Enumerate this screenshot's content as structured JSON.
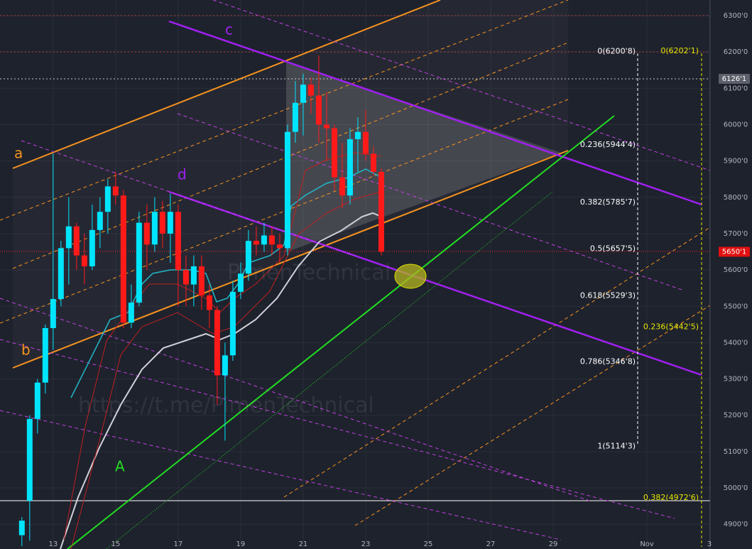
{
  "chart_data": {
    "type": "candlestick",
    "xlim": [
      11.3,
      34.02
    ],
    "ylim": [
      4832,
      6343
    ],
    "xticks": [
      13,
      15,
      17,
      19,
      21,
      23,
      25,
      27,
      29,
      {
        "value": 32,
        "label": "Nov"
      },
      {
        "value": 34,
        "label": "3"
      }
    ],
    "yticks": [
      {
        "value": 4900,
        "label": "4900'0"
      },
      {
        "value": 5000,
        "label": "5000'0"
      },
      {
        "value": 5100,
        "label": "5100'0"
      },
      {
        "value": 5200,
        "label": "5200'0"
      },
      {
        "value": 5300,
        "label": "5300'0"
      },
      {
        "value": 5400,
        "label": "5400'0"
      },
      {
        "value": 5500,
        "label": "5500'0"
      },
      {
        "value": 5600,
        "label": "5600'0"
      },
      {
        "value": 5700,
        "label": "5700'0"
      },
      {
        "value": 5800,
        "label": "5800'0"
      },
      {
        "value": 5900,
        "label": "5900'0"
      },
      {
        "value": 6000,
        "label": "6000'0"
      },
      {
        "value": 6100,
        "label": "6100'0"
      },
      {
        "value": 6200,
        "label": "6200'0"
      },
      {
        "value": 6300,
        "label": "6300'0"
      }
    ],
    "grid": true,
    "up_color": "#00e5ff",
    "down_color": "#ff1a1a",
    "x": [
      12,
      12.25,
      12.5,
      12.75,
      13,
      13.25,
      13.5,
      13.75,
      14,
      14.25,
      14.5,
      14.75,
      15,
      15.25,
      15.5,
      15.75,
      16,
      16.25,
      16.5,
      16.75,
      17,
      17.25,
      17.5,
      17.75,
      18,
      18.25,
      18.5,
      18.75,
      19,
      19.25,
      19.5,
      19.75,
      20,
      20.25,
      20.5,
      20.75,
      21,
      21.25,
      21.5,
      21.75,
      22,
      22.25,
      22.5,
      22.75,
      23,
      23.25,
      23.5
    ],
    "open": [
      4870,
      4965,
      5190,
      5290,
      5440,
      5520,
      5660,
      5720,
      5640,
      5610,
      5710,
      5760,
      5830,
      5805,
      5455,
      5510,
      5730,
      5670,
      5760,
      5700,
      5760,
      5600,
      5560,
      5610,
      5530,
      5490,
      5310,
      5365,
      5540,
      5590,
      5680,
      5670,
      5695,
      5670,
      5660,
      5980,
      6060,
      6110,
      6080,
      6000,
      5990,
      5855,
      5805,
      5960,
      5980,
      5920,
      5870
    ],
    "high": [
      4920,
      5200,
      5300,
      5450,
      5920,
      5680,
      5800,
      5730,
      5700,
      5780,
      5800,
      5850,
      5870,
      5820,
      5560,
      5760,
      5780,
      5800,
      5790,
      5810,
      5780,
      5640,
      5640,
      5640,
      5560,
      5500,
      5400,
      5570,
      5620,
      5710,
      5720,
      5730,
      5720,
      5700,
      6000,
      6120,
      6140,
      6130,
      6190,
      6090,
      6000,
      5950,
      5990,
      6020,
      6040,
      5940,
      5880
    ],
    "low": [
      4840,
      4855,
      5150,
      5260,
      5380,
      5500,
      5560,
      5600,
      5560,
      5600,
      5660,
      5700,
      5780,
      5440,
      5440,
      5500,
      5600,
      5650,
      5660,
      5620,
      5500,
      5500,
      5500,
      5490,
      5440,
      5230,
      5130,
      5350,
      5520,
      5570,
      5640,
      5650,
      5640,
      5620,
      5640,
      5950,
      5970,
      6030,
      5950,
      5900,
      5820,
      5770,
      5780,
      5870,
      5900,
      5860,
      5640
    ],
    "close": [
      4910,
      5190,
      5290,
      5440,
      5520,
      5660,
      5720,
      5640,
      5610,
      5710,
      5760,
      5830,
      5805,
      5455,
      5510,
      5730,
      5670,
      5760,
      5700,
      5760,
      5600,
      5560,
      5610,
      5530,
      5490,
      5310,
      5365,
      5540,
      5590,
      5680,
      5670,
      5695,
      5670,
      5660,
      5980,
      6060,
      6110,
      6080,
      6000,
      5990,
      5855,
      5805,
      5960,
      5980,
      5920,
      5870,
      5650.1
    ],
    "price_markers": [
      {
        "value": 6126.1,
        "label": "6126'1",
        "color": "#5d606b"
      },
      {
        "value": 5650.1,
        "label": "5650'1",
        "color": "#e01010"
      }
    ],
    "fib_levels": [
      {
        "label": "0(6200'8)",
        "value": 6200.8
      },
      {
        "label": "0.236(5944'4)",
        "value": 5944.4
      },
      {
        "label": "0.382(5785'7)",
        "value": 5785.7
      },
      {
        "label": "0.5(5657'5)",
        "value": 5657.5
      },
      {
        "label": "0.618(5529'3)",
        "value": 5529.3
      },
      {
        "label": "0.786(5346'8)",
        "value": 5346.8
      },
      {
        "label": "1(5114'3)",
        "value": 5114.3
      }
    ],
    "fib_levels_2": [
      {
        "label": "0(6202'1)",
        "value": 6202.1
      },
      {
        "label": "0.236(5442'5)",
        "value": 5442.5
      },
      {
        "label": "0.382(4972'6)",
        "value": 4972.6
      }
    ],
    "annotations": [
      "a",
      "b",
      "c",
      "d",
      "A"
    ],
    "watermarks": [
      "https://t.me/PimenTechnical",
      "PimenTechnical"
    ]
  }
}
